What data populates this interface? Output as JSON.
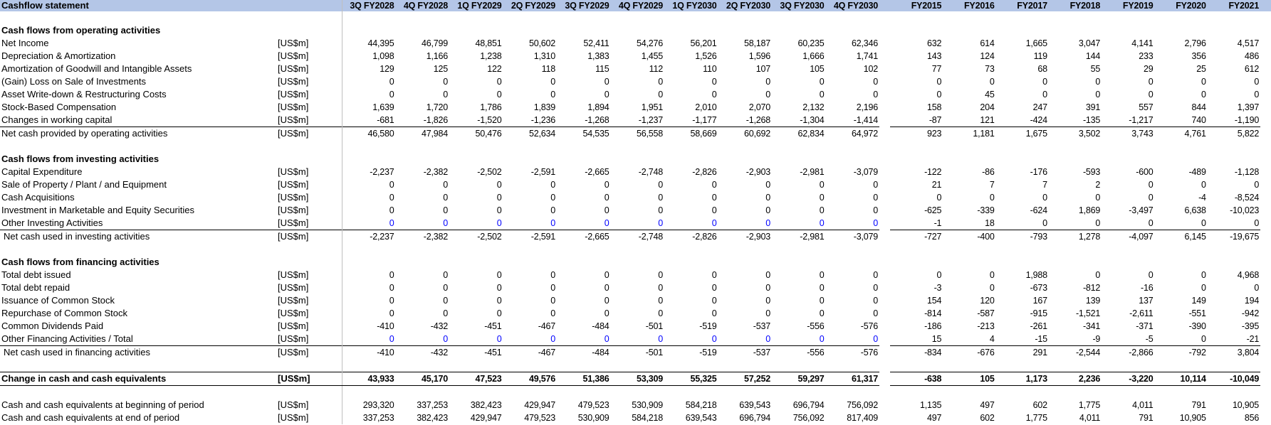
{
  "sheet": {
    "title": "Cashflow statement",
    "quarter_headers": [
      "3Q FY2028",
      "4Q FY2028",
      "1Q FY2029",
      "2Q FY2029",
      "3Q FY2029",
      "4Q FY2029",
      "1Q FY2030",
      "2Q FY2030",
      "3Q FY2030",
      "4Q FY2030"
    ],
    "year_headers": [
      "FY2015",
      "FY2016",
      "FY2017",
      "FY2018",
      "FY2019",
      "FY2020",
      "FY2021"
    ],
    "input_value_color": "#0000ff",
    "header_color": "#b4c6e7"
  },
  "rows": [
    {
      "type": "blank"
    },
    {
      "type": "section",
      "label": "Cash flows from operating activities"
    },
    {
      "type": "line",
      "label": "Net Income",
      "unit": "[US$m]",
      "q": [
        "44,395",
        "46,799",
        "48,851",
        "50,602",
        "52,411",
        "54,276",
        "56,201",
        "58,187",
        "60,235",
        "62,346"
      ],
      "y": [
        "632",
        "614",
        "1,665",
        "3,047",
        "4,141",
        "2,796",
        "4,517"
      ]
    },
    {
      "type": "line",
      "label": "Depreciation & Amortization",
      "unit": "[US$m]",
      "q": [
        "1,098",
        "1,166",
        "1,238",
        "1,310",
        "1,383",
        "1,455",
        "1,526",
        "1,596",
        "1,666",
        "1,741"
      ],
      "y": [
        "143",
        "124",
        "119",
        "144",
        "233",
        "356",
        "486"
      ]
    },
    {
      "type": "line",
      "label": "Amortization of Goodwill and Intangible Assets",
      "unit": "[US$m]",
      "q": [
        "129",
        "125",
        "122",
        "118",
        "115",
        "112",
        "110",
        "107",
        "105",
        "102"
      ],
      "y": [
        "77",
        "73",
        "68",
        "55",
        "29",
        "25",
        "612"
      ]
    },
    {
      "type": "line",
      "label": "(Gain) Loss on Sale of Investments",
      "unit": "[US$m]",
      "q": [
        "0",
        "0",
        "0",
        "0",
        "0",
        "0",
        "0",
        "0",
        "0",
        "0"
      ],
      "y": [
        "0",
        "0",
        "0",
        "0",
        "0",
        "0",
        "0"
      ]
    },
    {
      "type": "line",
      "label": "Asset Write-down & Restructuring Costs",
      "unit": "[US$m]",
      "q": [
        "0",
        "0",
        "0",
        "0",
        "0",
        "0",
        "0",
        "0",
        "0",
        "0"
      ],
      "y": [
        "0",
        "45",
        "0",
        "0",
        "0",
        "0",
        "0"
      ]
    },
    {
      "type": "line",
      "label": "Stock-Based Compensation",
      "unit": "[US$m]",
      "q": [
        "1,639",
        "1,720",
        "1,786",
        "1,839",
        "1,894",
        "1,951",
        "2,010",
        "2,070",
        "2,132",
        "2,196"
      ],
      "y": [
        "158",
        "204",
        "247",
        "391",
        "557",
        "844",
        "1,397"
      ]
    },
    {
      "type": "line",
      "label": "Changes in working capital",
      "unit": "[US$m]",
      "q": [
        "-681",
        "-1,826",
        "-1,520",
        "-1,236",
        "-1,268",
        "-1,237",
        "-1,177",
        "-1,268",
        "-1,304",
        "-1,414"
      ],
      "y": [
        "-87",
        "121",
        "-424",
        "-135",
        "-1,217",
        "740",
        "-1,190"
      ]
    },
    {
      "type": "total",
      "label": "Net cash provided by operating activities",
      "unit": "[US$m]",
      "q": [
        "46,580",
        "47,984",
        "50,476",
        "52,634",
        "54,535",
        "56,558",
        "58,669",
        "60,692",
        "62,834",
        "64,972"
      ],
      "y": [
        "923",
        "1,181",
        "1,675",
        "3,502",
        "3,743",
        "4,761",
        "5,822"
      ]
    },
    {
      "type": "blank"
    },
    {
      "type": "section",
      "label": "Cash flows from investing activities"
    },
    {
      "type": "line",
      "label": "Capital Expenditure",
      "unit": "[US$m]",
      "q": [
        "-2,237",
        "-2,382",
        "-2,502",
        "-2,591",
        "-2,665",
        "-2,748",
        "-2,826",
        "-2,903",
        "-2,981",
        "-3,079"
      ],
      "y": [
        "-122",
        "-86",
        "-176",
        "-593",
        "-600",
        "-489",
        "-1,128"
      ]
    },
    {
      "type": "line",
      "label": "Sale of Property / Plant / and Equipment",
      "unit": "[US$m]",
      "q": [
        "0",
        "0",
        "0",
        "0",
        "0",
        "0",
        "0",
        "0",
        "0",
        "0"
      ],
      "y": [
        "21",
        "7",
        "7",
        "2",
        "0",
        "0",
        "0"
      ]
    },
    {
      "type": "line",
      "label": "Cash Acquisitions",
      "unit": "[US$m]",
      "q": [
        "0",
        "0",
        "0",
        "0",
        "0",
        "0",
        "0",
        "0",
        "0",
        "0"
      ],
      "y": [
        "0",
        "0",
        "0",
        "0",
        "0",
        "-4",
        "-8,524"
      ]
    },
    {
      "type": "line",
      "label": "Investment in Marketable and Equity Securities",
      "unit": "[US$m]",
      "q": [
        "0",
        "0",
        "0",
        "0",
        "0",
        "0",
        "0",
        "0",
        "0",
        "0"
      ],
      "y": [
        "-625",
        "-339",
        "-624",
        "1,869",
        "-3,497",
        "6,638",
        "-10,023"
      ]
    },
    {
      "type": "line",
      "label": "Other Investing Activities",
      "unit": "[US$m]",
      "q_input": true,
      "q": [
        "0",
        "0",
        "0",
        "0",
        "0",
        "0",
        "0",
        "0",
        "0",
        "0"
      ],
      "y": [
        "-1",
        "18",
        "0",
        "0",
        "0",
        "0",
        "0"
      ]
    },
    {
      "type": "total",
      "indent": true,
      "label": "Net cash used in investing activities",
      "unit": "[US$m]",
      "q": [
        "-2,237",
        "-2,382",
        "-2,502",
        "-2,591",
        "-2,665",
        "-2,748",
        "-2,826",
        "-2,903",
        "-2,981",
        "-3,079"
      ],
      "y": [
        "-727",
        "-400",
        "-793",
        "1,278",
        "-4,097",
        "6,145",
        "-19,675"
      ]
    },
    {
      "type": "blank"
    },
    {
      "type": "section",
      "label": "Cash flows from financing activities"
    },
    {
      "type": "line",
      "label": "Total debt issued",
      "unit": "[US$m]",
      "q": [
        "0",
        "0",
        "0",
        "0",
        "0",
        "0",
        "0",
        "0",
        "0",
        "0"
      ],
      "y": [
        "0",
        "0",
        "1,988",
        "0",
        "0",
        "0",
        "4,968"
      ]
    },
    {
      "type": "line",
      "label": "Total debt repaid",
      "unit": "[US$m]",
      "q": [
        "0",
        "0",
        "0",
        "0",
        "0",
        "0",
        "0",
        "0",
        "0",
        "0"
      ],
      "y": [
        "-3",
        "0",
        "-673",
        "-812",
        "-16",
        "0",
        "0"
      ]
    },
    {
      "type": "line",
      "label": "Issuance of Common Stock",
      "unit": "[US$m]",
      "q": [
        "0",
        "0",
        "0",
        "0",
        "0",
        "0",
        "0",
        "0",
        "0",
        "0"
      ],
      "y": [
        "154",
        "120",
        "167",
        "139",
        "137",
        "149",
        "194"
      ]
    },
    {
      "type": "line",
      "label": "Repurchase of Common Stock",
      "unit": "[US$m]",
      "q": [
        "0",
        "0",
        "0",
        "0",
        "0",
        "0",
        "0",
        "0",
        "0",
        "0"
      ],
      "y": [
        "-814",
        "-587",
        "-915",
        "-1,521",
        "-2,611",
        "-551",
        "-942"
      ]
    },
    {
      "type": "line",
      "label": "Common Dividends Paid",
      "unit": "[US$m]",
      "q": [
        "-410",
        "-432",
        "-451",
        "-467",
        "-484",
        "-501",
        "-519",
        "-537",
        "-556",
        "-576"
      ],
      "y": [
        "-186",
        "-213",
        "-261",
        "-341",
        "-371",
        "-390",
        "-395"
      ]
    },
    {
      "type": "line",
      "label": "Other Financing Activities / Total",
      "unit": "[US$m]",
      "q_input": true,
      "q": [
        "0",
        "0",
        "0",
        "0",
        "0",
        "0",
        "0",
        "0",
        "0",
        "0"
      ],
      "y": [
        "15",
        "4",
        "-15",
        "-9",
        "-5",
        "0",
        "-21"
      ]
    },
    {
      "type": "total",
      "indent": true,
      "label": "Net cash used in financing activities",
      "unit": "[US$m]",
      "q": [
        "-410",
        "-432",
        "-451",
        "-467",
        "-484",
        "-501",
        "-519",
        "-537",
        "-556",
        "-576"
      ],
      "y": [
        "-834",
        "-676",
        "291",
        "-2,544",
        "-2,866",
        "-792",
        "3,804"
      ]
    },
    {
      "type": "blank"
    },
    {
      "type": "grand",
      "label": "Change in cash and cash equivalents",
      "unit": "[US$m]",
      "q": [
        "43,933",
        "45,170",
        "47,523",
        "49,576",
        "51,386",
        "53,309",
        "55,325",
        "57,252",
        "59,297",
        "61,317"
      ],
      "y": [
        "-638",
        "105",
        "1,173",
        "2,236",
        "-3,220",
        "10,114",
        "-10,049"
      ]
    },
    {
      "type": "blank"
    },
    {
      "type": "line",
      "label": "Cash and cash equivalents at beginning of period",
      "unit": "[US$m]",
      "q": [
        "293,320",
        "337,253",
        "382,423",
        "429,947",
        "479,523",
        "530,909",
        "584,218",
        "639,543",
        "696,794",
        "756,092"
      ],
      "y": [
        "1,135",
        "497",
        "602",
        "1,775",
        "4,011",
        "791",
        "10,905"
      ]
    },
    {
      "type": "line",
      "label": "Cash and cash equivalents at end of period",
      "unit": "[US$m]",
      "q": [
        "337,253",
        "382,423",
        "429,947",
        "479,523",
        "530,909",
        "584,218",
        "639,543",
        "696,794",
        "756,092",
        "817,409"
      ],
      "y": [
        "497",
        "602",
        "1,775",
        "4,011",
        "791",
        "10,905",
        "856"
      ]
    }
  ]
}
